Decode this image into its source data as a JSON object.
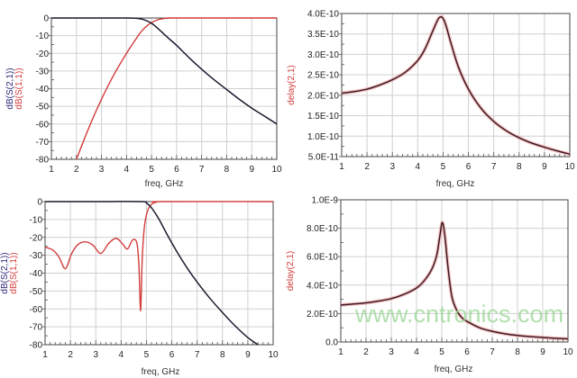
{
  "colors": {
    "s21": "#1a1a2e",
    "s21_label": "#2a2a7a",
    "s11": "#d23c3c",
    "delay": "#3a1a22",
    "delay_glow": "#f08a8a",
    "grid": "#d0d0d0",
    "watermark": "#9fd89a"
  },
  "watermark": "www.cntronics.com",
  "chart_data": [
    {
      "type": "line",
      "xlabel": "freq, GHz",
      "ylabels": [
        "dB(S(2,1))",
        "dB(S(1,1))"
      ],
      "xlim": [
        1,
        10
      ],
      "ylim": [
        -80,
        0
      ],
      "xticks": [
        "1",
        "2",
        "3",
        "4",
        "5",
        "6",
        "7",
        "8",
        "9",
        "10"
      ],
      "yticks": [
        "0",
        "-10",
        "-20",
        "-30",
        "-40",
        "-50",
        "-60",
        "-70",
        "-80"
      ],
      "grid": true,
      "series": [
        {
          "name": "dB(S(2,1))",
          "color": "#1a1a2e",
          "x": [
            1,
            2,
            3,
            4,
            4.4,
            4.7,
            5,
            5.3,
            5.6,
            6,
            6.5,
            7,
            7.5,
            8,
            8.5,
            9,
            9.5,
            10
          ],
          "y": [
            0,
            0,
            0,
            0,
            -0.2,
            -1,
            -3,
            -6.5,
            -10.5,
            -15.5,
            -22.5,
            -29,
            -35,
            -40.5,
            -46,
            -51,
            -55.5,
            -60
          ]
        },
        {
          "name": "dB(S(1,1))",
          "color": "#d23c3c",
          "x": [
            2,
            2.5,
            3,
            3.5,
            4,
            4.3,
            4.6,
            4.9,
            5.2,
            5.5,
            5.8,
            6,
            10
          ],
          "y": [
            -80,
            -62,
            -46,
            -32,
            -20,
            -13.5,
            -7.5,
            -3.5,
            -1.2,
            -0.3,
            0,
            0,
            0
          ]
        }
      ]
    },
    {
      "type": "line",
      "xlabel": "freq, GHz",
      "ylabels": [
        "delay(2,1)"
      ],
      "xlim": [
        1,
        10
      ],
      "ylim": [
        5e-11,
        4e-10
      ],
      "xticks": [
        "1",
        "2",
        "3",
        "4",
        "5",
        "6",
        "7",
        "8",
        "9",
        "10"
      ],
      "yticks": [
        "4.0E-10",
        "3.5E-10",
        "3.0E-10",
        "2.5E-10",
        "2.0E-10",
        "1.5E-10",
        "1.0E-10",
        "5.0E-11"
      ],
      "grid": true,
      "series": [
        {
          "name": "delay(2,1)",
          "color": "#3a1a22",
          "x": [
            1,
            1.5,
            2,
            2.5,
            3,
            3.5,
            4,
            4.3,
            4.6,
            4.85,
            5.05,
            5.3,
            5.6,
            6,
            6.5,
            7,
            7.5,
            8,
            8.5,
            9,
            9.5,
            10
          ],
          "y": [
            2.05e-10,
            2.09e-10,
            2.15e-10,
            2.25e-10,
            2.38e-10,
            2.56e-10,
            2.85e-10,
            3.15e-10,
            3.58e-10,
            3.9e-10,
            3.82e-10,
            3.3e-10,
            2.7e-10,
            2.15e-10,
            1.68e-10,
            1.36e-10,
            1.13e-10,
            9.6e-11,
            8.3e-11,
            7.3e-11,
            6.4e-11,
            5.6e-11
          ]
        }
      ]
    },
    {
      "type": "line",
      "xlabel": "freq, GHz",
      "ylabels": [
        "dB(S(2,1))",
        "dB(S(1,1))"
      ],
      "xlim": [
        1,
        10
      ],
      "ylim": [
        -80,
        0
      ],
      "xticks": [
        "1",
        "2",
        "3",
        "4",
        "5",
        "6",
        "7",
        "8",
        "9",
        "10"
      ],
      "yticks": [
        "0",
        "-10",
        "-20",
        "-30",
        "-40",
        "-50",
        "-60",
        "-70",
        "-80"
      ],
      "grid": true,
      "series": [
        {
          "name": "dB(S(2,1))",
          "color": "#1a1a2e",
          "x": [
            1,
            3,
            4.8,
            5,
            5.2,
            5.5,
            5.8,
            6.2,
            6.6,
            7,
            7.5,
            8,
            8.5,
            9,
            9.4
          ],
          "y": [
            0,
            0,
            0,
            -0.8,
            -3.5,
            -10,
            -18,
            -28,
            -37,
            -45,
            -54,
            -62,
            -69.5,
            -76,
            -80
          ]
        },
        {
          "name": "dB(S(1,1))",
          "color": "#d23c3c",
          "x": [
            1,
            1.3,
            1.55,
            1.8,
            2.05,
            2.3,
            2.6,
            2.9,
            3.2,
            3.5,
            3.8,
            4.05,
            4.25,
            4.45,
            4.62,
            4.7,
            4.77,
            4.83,
            4.92,
            5.05,
            5.2,
            5.4,
            5.6,
            10
          ],
          "y": [
            -25.5,
            -27,
            -31,
            -37.5,
            -29,
            -24,
            -22.5,
            -24.5,
            -29,
            -23.5,
            -20.5,
            -23.5,
            -26.5,
            -21.5,
            -23,
            -35,
            -61,
            -33,
            -14,
            -5,
            -1.5,
            -0.3,
            0,
            0
          ]
        }
      ]
    },
    {
      "type": "line",
      "xlabel": "freq, GHz",
      "ylabels": [
        "delay(2,1)"
      ],
      "xlim": [
        1,
        10
      ],
      "ylim": [
        0,
        1e-09
      ],
      "xticks": [
        "1",
        "2",
        "3",
        "4",
        "5",
        "6",
        "7",
        "8",
        "9",
        "10"
      ],
      "yticks": [
        "1.0E-9",
        "8.0E-10",
        "6.0E-10",
        "4.0E-10",
        "2.0E-10",
        "0.0"
      ],
      "grid": true,
      "series": [
        {
          "name": "delay(2,1)",
          "color": "#3a1a22",
          "x": [
            1,
            1.5,
            2,
            2.5,
            3,
            3.5,
            4,
            4.3,
            4.6,
            4.8,
            4.92,
            5.02,
            5.12,
            5.25,
            5.4,
            5.6,
            5.8,
            6,
            6.5,
            7,
            7.5,
            8,
            8.5,
            9,
            9.5,
            10
          ],
          "y": [
            2.6e-10,
            2.67e-10,
            2.75e-10,
            2.88e-10,
            3.05e-10,
            3.35e-10,
            3.8e-10,
            4.3e-10,
            5.1e-10,
            6.1e-10,
            7.4e-10,
            8.4e-10,
            7.5e-10,
            5.2e-10,
            3.2e-10,
            2.2e-10,
            1.7e-10,
            1.45e-10,
            1e-10,
            7.5e-11,
            5.8e-11,
            4.6e-11,
            3.8e-11,
            3.2e-11,
            2.6e-11,
            2.2e-11
          ]
        }
      ]
    }
  ]
}
